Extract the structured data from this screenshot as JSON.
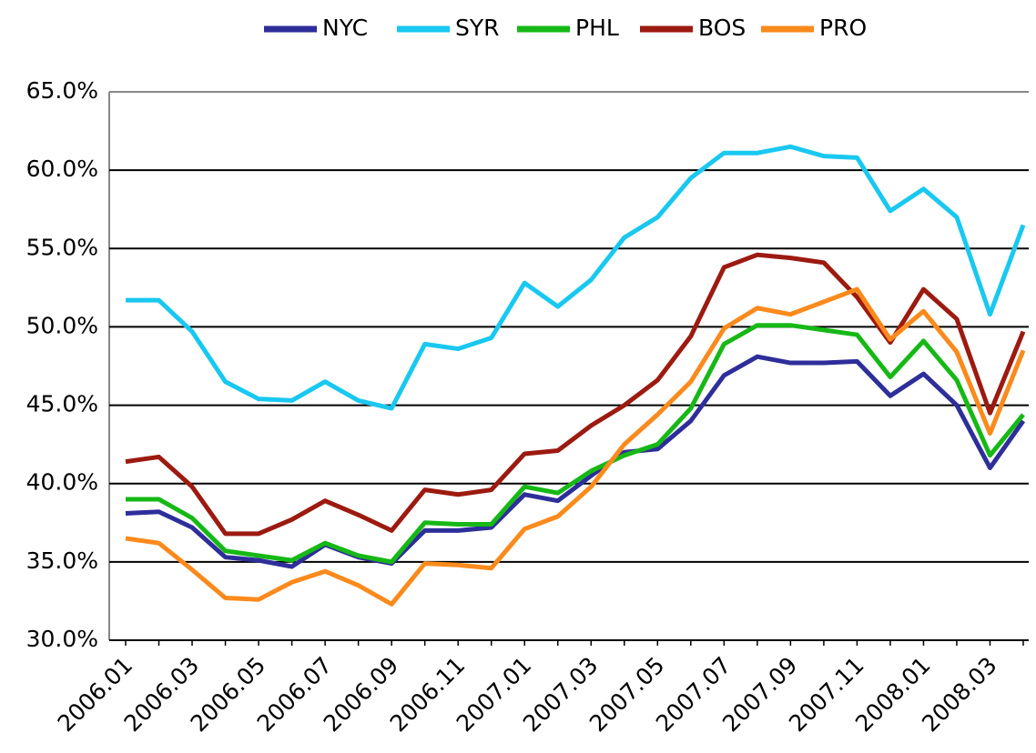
{
  "chart_data": {
    "type": "line",
    "categories": [
      "2006.01",
      null,
      "2006.03",
      null,
      "2006.05",
      null,
      "2006.07",
      null,
      "2006.09",
      null,
      "2006.11",
      null,
      "2007.01",
      null,
      "2007.03",
      null,
      "2007.05",
      null,
      "2007.07",
      null,
      "2007.09",
      null,
      "2007.11",
      null,
      "2008.01",
      null,
      "2008.03",
      null
    ],
    "series": [
      {
        "name": "NYC",
        "color": "#2e2e9a",
        "values": [
          38.1,
          38.2,
          37.2,
          35.3,
          35.1,
          34.7,
          36.1,
          35.3,
          34.9,
          37.0,
          37.0,
          37.2,
          39.3,
          38.9,
          40.5,
          42.0,
          42.2,
          44.0,
          46.9,
          48.1,
          47.7,
          47.7,
          47.8,
          45.6,
          47.0,
          45.0,
          41.0,
          44.0
        ]
      },
      {
        "name": "SYR",
        "color": "#19c8f0",
        "values": [
          51.7,
          51.7,
          49.7,
          46.5,
          45.4,
          45.3,
          46.5,
          45.3,
          44.8,
          48.9,
          48.6,
          49.3,
          52.8,
          51.3,
          53.0,
          55.7,
          57.0,
          59.5,
          61.1,
          61.1,
          61.5,
          60.9,
          60.8,
          57.4,
          58.8,
          57.0,
          50.8,
          56.5
        ]
      },
      {
        "name": "PHL",
        "color": "#16b816",
        "values": [
          39.0,
          39.0,
          37.8,
          35.7,
          35.4,
          35.1,
          36.2,
          35.4,
          35.0,
          37.5,
          37.4,
          37.4,
          39.8,
          39.4,
          40.8,
          41.8,
          42.5,
          44.8,
          48.9,
          50.1,
          50.1,
          49.8,
          49.5,
          46.8,
          49.1,
          46.6,
          41.8,
          44.4
        ]
      },
      {
        "name": "BOS",
        "color": "#9c1a10",
        "values": [
          41.4,
          41.7,
          39.8,
          36.8,
          36.8,
          37.7,
          38.9,
          38.0,
          37.0,
          39.6,
          39.3,
          39.6,
          41.9,
          42.1,
          43.7,
          45.0,
          46.6,
          49.4,
          53.8,
          54.6,
          54.4,
          54.1,
          51.9,
          49.0,
          52.4,
          50.5,
          44.5,
          49.7
        ]
      },
      {
        "name": "PRO",
        "color": "#fb8a1c",
        "values": [
          36.5,
          36.2,
          34.5,
          32.7,
          32.6,
          33.7,
          34.4,
          33.5,
          32.3,
          34.9,
          34.8,
          34.6,
          37.1,
          37.9,
          39.8,
          42.5,
          44.4,
          46.5,
          49.9,
          51.2,
          50.8,
          51.6,
          52.4,
          49.2,
          51.0,
          48.4,
          43.2,
          48.5
        ]
      }
    ],
    "ylim": [
      30,
      65
    ],
    "yticks": [
      {
        "value": 30,
        "label": "30.0%"
      },
      {
        "value": 35,
        "label": "35.0%"
      },
      {
        "value": 40,
        "label": "40.0%"
      },
      {
        "value": 45,
        "label": "45.0%"
      },
      {
        "value": 50,
        "label": "50.0%"
      },
      {
        "value": 55,
        "label": "55.0%"
      },
      {
        "value": 60,
        "label": "60.0%"
      },
      {
        "value": 65,
        "label": "65.0%"
      }
    ],
    "grid": true,
    "legend": "top"
  }
}
